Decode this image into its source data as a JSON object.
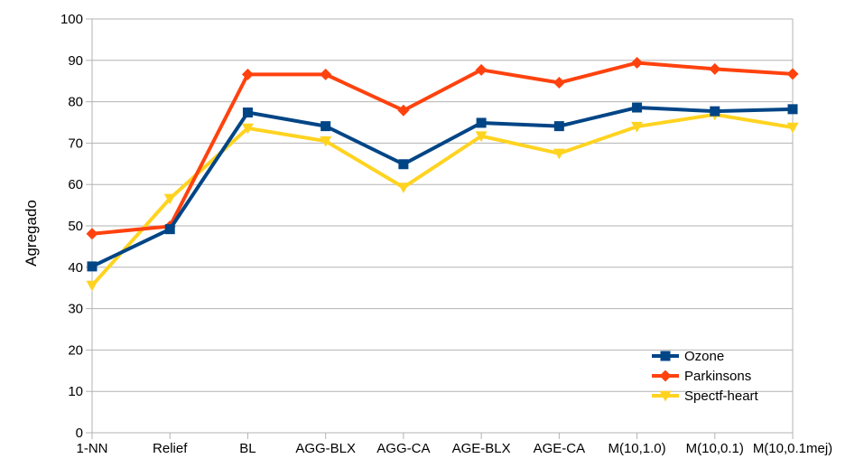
{
  "chart_data": {
    "type": "line",
    "title": "",
    "xlabel": "",
    "ylabel": "Agregado",
    "ylim": [
      0,
      100
    ],
    "ytick_step": 10,
    "grid": "horizontal",
    "legend_position": "bottom-right",
    "categories": [
      "1-NN",
      "Relief",
      "BL",
      "AGG-BLX",
      "AGG-CA",
      "AGE-BLX",
      "AGE-CA",
      "M(10,1.0)",
      "M(10,0.1)",
      "M(10,0.1mej)"
    ],
    "series": [
      {
        "name": "Ozone",
        "color": "#004586",
        "marker": "square",
        "values": [
          40.2,
          49.2,
          77.4,
          74.1,
          64.9,
          74.9,
          74.1,
          78.6,
          77.7,
          78.2
        ]
      },
      {
        "name": "Parkinsons",
        "color": "#ff420e",
        "marker": "diamond",
        "values": [
          48.1,
          49.9,
          86.6,
          86.6,
          77.9,
          87.7,
          84.6,
          89.4,
          87.9,
          86.7
        ]
      },
      {
        "name": "Spectf-heart",
        "color": "#ffd320",
        "marker": "triangle-down",
        "values": [
          35.6,
          56.6,
          73.6,
          70.5,
          59.3,
          71.7,
          67.5,
          74.0,
          76.9,
          73.8
        ]
      }
    ]
  }
}
